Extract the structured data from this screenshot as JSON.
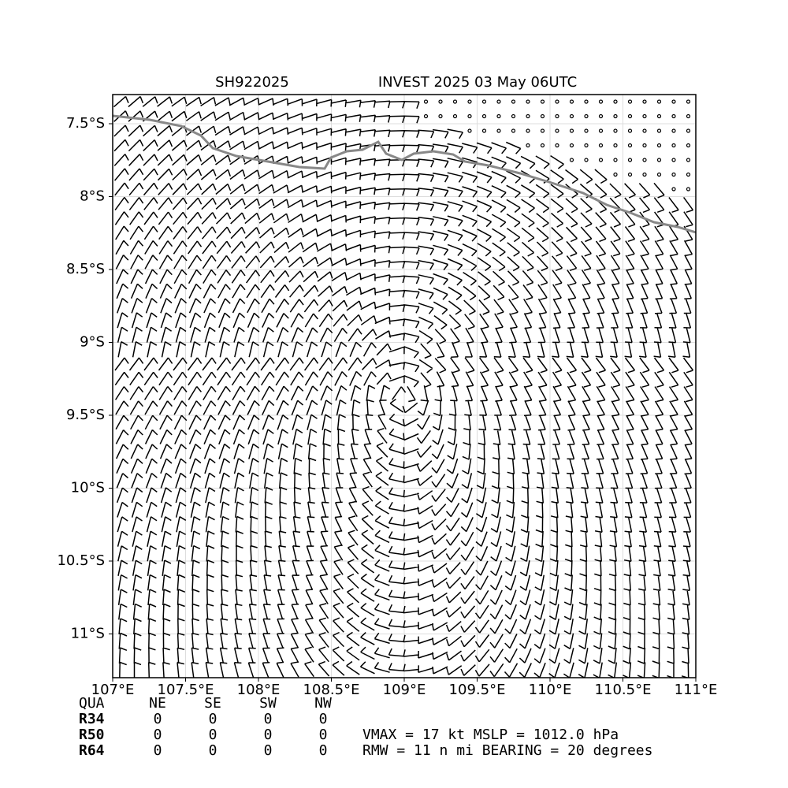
{
  "map": {
    "title_left": "SH922025",
    "title_right": "INVEST 2025 03 May 06UTC",
    "xlim": [
      107,
      111
    ],
    "ylim": [
      -11.3,
      -7.3
    ],
    "xticks": [
      {
        "value": 107,
        "label": "107°E"
      },
      {
        "value": 107.5,
        "label": "107.5°E"
      },
      {
        "value": 108,
        "label": "108°E"
      },
      {
        "value": 108.5,
        "label": "108.5°E"
      },
      {
        "value": 109,
        "label": "109°E"
      },
      {
        "value": 109.5,
        "label": "109.5°E"
      },
      {
        "value": 110,
        "label": "110°E"
      },
      {
        "value": 110.5,
        "label": "110.5°E"
      },
      {
        "value": 111,
        "label": "111°E"
      }
    ],
    "yticks": [
      {
        "value": -7.5,
        "label": "7.5°S"
      },
      {
        "value": -8,
        "label": "8°S"
      },
      {
        "value": -8.5,
        "label": "8.5°S"
      },
      {
        "value": -9,
        "label": "9°S"
      },
      {
        "value": -9.5,
        "label": "9.5°S"
      },
      {
        "value": -10,
        "label": "10°S"
      },
      {
        "value": -10.5,
        "label": "10.5°S"
      },
      {
        "value": -11,
        "label": "11°S"
      }
    ],
    "grid": true
  },
  "table": {
    "header": [
      "QUA",
      "NE",
      "SE",
      "SW",
      "NW"
    ],
    "rows": [
      [
        "R34",
        0,
        0,
        0,
        0
      ],
      [
        "R50",
        0,
        0,
        0,
        0
      ],
      [
        "R64",
        0,
        0,
        0,
        0
      ]
    ]
  },
  "stats": [
    "VMAX =  17 kt MSLP = 1012.0 hPa",
    "RMW =  11 n mi BEARING =  20 degrees"
  ]
}
